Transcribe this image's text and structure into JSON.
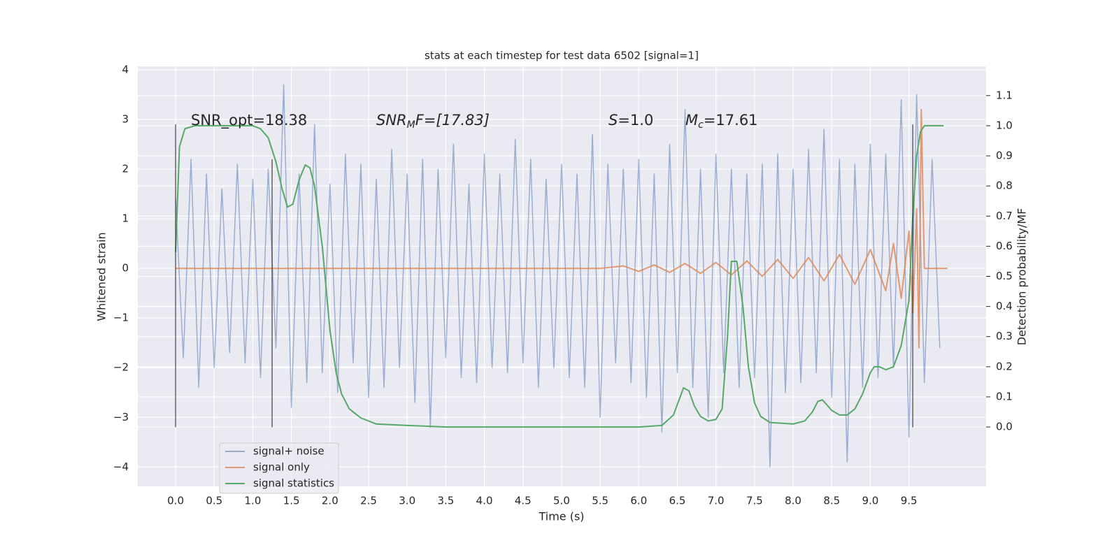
{
  "chart_data": {
    "type": "line",
    "title": "stats at each timestep for test data 6502 [signal=1]",
    "xlabel": "Time (s)",
    "ylabel": "Whitened strain",
    "y2label": "Detection probability/MF",
    "xlim": [
      -0.49,
      10.5
    ],
    "ylim": [
      -4.39,
      4.07
    ],
    "y2lim": [
      -0.197,
      1.197
    ],
    "xticks": [
      {
        "value": 0,
        "label": "0.0"
      },
      {
        "value": 0.5,
        "label": "0.5"
      },
      {
        "value": 1,
        "label": "1.0"
      },
      {
        "value": 1.5,
        "label": "1.5"
      },
      {
        "value": 2,
        "label": "2.0"
      },
      {
        "value": 2.5,
        "label": "2.5"
      },
      {
        "value": 3,
        "label": "3.0"
      },
      {
        "value": 3.5,
        "label": "3.5"
      },
      {
        "value": 4,
        "label": "4.0"
      },
      {
        "value": 4.5,
        "label": "4.5"
      },
      {
        "value": 5,
        "label": "5.0"
      },
      {
        "value": 5.5,
        "label": "5.5"
      },
      {
        "value": 6,
        "label": "6.0"
      },
      {
        "value": 6.5,
        "label": "6.5"
      },
      {
        "value": 7,
        "label": "7.0"
      },
      {
        "value": 7.5,
        "label": "7.5"
      },
      {
        "value": 8,
        "label": "8.0"
      },
      {
        "value": 8.5,
        "label": "8.5"
      },
      {
        "value": 9,
        "label": "9.0"
      },
      {
        "value": 9.5,
        "label": "9.5"
      }
    ],
    "yticks": [
      {
        "value": -4,
        "label": "−4"
      },
      {
        "value": -3,
        "label": "−3"
      },
      {
        "value": -2,
        "label": "−2"
      },
      {
        "value": -1,
        "label": "−1"
      },
      0,
      1,
      2,
      3,
      4
    ],
    "y2ticks": [
      {
        "value": 0,
        "label": "0.0"
      },
      {
        "value": 0.1,
        "label": "0.1"
      },
      {
        "value": 0.2,
        "label": "0.2"
      },
      {
        "value": 0.3,
        "label": "0.3"
      },
      {
        "value": 0.4,
        "label": "0.4"
      },
      {
        "value": 0.5,
        "label": "0.5"
      },
      {
        "value": 0.6,
        "label": "0.6"
      },
      {
        "value": 0.7,
        "label": "0.7"
      },
      {
        "value": 0.8,
        "label": "0.8"
      },
      {
        "value": 0.9,
        "label": "0.9"
      },
      {
        "value": 1,
        "label": "1.0"
      },
      {
        "value": 1.1,
        "label": "1.1"
      }
    ],
    "grid": true,
    "legend": "lower left",
    "annotations": [
      {
        "base": "SNR_opt=18.38"
      },
      {
        "base": "SNR",
        "sub": "M",
        "rest": "F=[17.83]"
      },
      {
        "base": "S",
        "rest": "=1.0"
      },
      {
        "base": "M",
        "sub": "c",
        "rest": "=17.61"
      }
    ],
    "vlines": [
      {
        "x": 0,
        "ymin": -3.2,
        "ymax": 2.9
      },
      {
        "x": 1.25,
        "ymin": -3.2,
        "ymax": 2.2
      },
      {
        "x": 9.55,
        "ymin": -3.2,
        "ymax": 2.9
      }
    ],
    "series": [
      {
        "name": "signal+ noise",
        "color": "#4c72b0",
        "alpha": 0.5,
        "x": [
          0,
          0.1,
          0.2,
          0.3,
          0.4,
          0.5,
          0.6,
          0.7,
          0.8,
          0.9,
          1.0,
          1.1,
          1.2,
          1.3,
          1.4,
          1.5,
          1.6,
          1.7,
          1.8,
          1.9,
          2.0,
          2.1,
          2.2,
          2.3,
          2.4,
          2.5,
          2.6,
          2.7,
          2.8,
          2.9,
          3.0,
          3.1,
          3.2,
          3.3,
          3.4,
          3.5,
          3.6,
          3.7,
          3.8,
          3.9,
          4.0,
          4.1,
          4.2,
          4.3,
          4.4,
          4.5,
          4.6,
          4.7,
          4.8,
          4.9,
          5.0,
          5.1,
          5.2,
          5.3,
          5.4,
          5.5,
          5.6,
          5.7,
          5.8,
          5.9,
          6.0,
          6.1,
          6.2,
          6.3,
          6.4,
          6.5,
          6.6,
          6.7,
          6.8,
          6.9,
          7.0,
          7.1,
          7.2,
          7.3,
          7.4,
          7.5,
          7.6,
          7.7,
          7.8,
          7.9,
          8.0,
          8.1,
          8.2,
          8.3,
          8.4,
          8.5,
          8.6,
          8.7,
          8.8,
          8.9,
          9.0,
          9.1,
          9.2,
          9.3,
          9.4,
          9.5,
          9.6,
          9.7,
          9.8,
          9.9
        ],
        "values": [
          1.4,
          -1.8,
          2.2,
          -2.4,
          1.9,
          -2.0,
          1.6,
          -1.7,
          2.1,
          -1.9,
          1.8,
          -2.2,
          2.0,
          -1.6,
          3.7,
          -2.8,
          1.9,
          -2.3,
          2.9,
          -2.1,
          1.7,
          -2.5,
          2.3,
          -1.9,
          2.1,
          -2.6,
          1.8,
          -2.4,
          2.4,
          -2.0,
          1.9,
          -2.7,
          2.2,
          -3.2,
          2.0,
          -1.8,
          2.5,
          -2.2,
          1.7,
          -2.3,
          2.3,
          -2.0,
          1.9,
          -2.1,
          2.6,
          -1.9,
          2.2,
          -2.4,
          1.8,
          -2.0,
          2.1,
          -2.2,
          1.9,
          -2.4,
          2.7,
          -3.0,
          2.1,
          -1.9,
          2.0,
          -2.3,
          2.2,
          -2.6,
          1.9,
          -3.3,
          2.5,
          -2.1,
          3.2,
          -2.4,
          2.0,
          -3.0,
          2.3,
          -2.1,
          2.0,
          -2.4,
          1.9,
          -2.2,
          2.1,
          -4.0,
          2.3,
          -2.5,
          2.0,
          -2.3,
          2.4,
          -2.1,
          2.8,
          -2.6,
          2.2,
          -3.9,
          2.1,
          -2.4,
          2.5,
          -2.2,
          2.3,
          -2.0,
          3.4,
          -3.4,
          3.5,
          -2.3,
          2.2,
          -1.6
        ]
      },
      {
        "name": "signal only",
        "color": "#dd8452",
        "alpha": 0.8,
        "x": [
          0,
          5.5,
          5.8,
          6.0,
          6.2,
          6.4,
          6.6,
          6.8,
          7.0,
          7.2,
          7.4,
          7.6,
          7.8,
          8.0,
          8.2,
          8.4,
          8.6,
          8.8,
          9.0,
          9.2,
          9.3,
          9.4,
          9.5,
          9.55,
          9.6,
          9.63,
          9.66,
          9.7,
          10.0
        ],
        "values": [
          0,
          0,
          0.05,
          -0.06,
          0.07,
          -0.08,
          0.1,
          -0.1,
          0.12,
          -0.13,
          0.15,
          -0.16,
          0.18,
          -0.2,
          0.22,
          -0.25,
          0.28,
          -0.32,
          0.38,
          -0.45,
          0.5,
          -0.6,
          0.75,
          -0.9,
          1.2,
          -1.6,
          3.2,
          0,
          0
        ]
      },
      {
        "name": "signal statistics",
        "color": "#55a868",
        "alpha": 1,
        "axis": "y2",
        "x": [
          0,
          0.05,
          0.12,
          0.25,
          0.5,
          0.8,
          1.0,
          1.1,
          1.2,
          1.3,
          1.38,
          1.45,
          1.52,
          1.6,
          1.68,
          1.74,
          1.8,
          1.9,
          2.0,
          2.08,
          2.15,
          2.25,
          2.4,
          2.6,
          3.0,
          3.5,
          4.0,
          4.5,
          5.0,
          5.5,
          6.0,
          6.3,
          6.45,
          6.58,
          6.65,
          6.72,
          6.8,
          6.9,
          7.0,
          7.08,
          7.15,
          7.2,
          7.27,
          7.35,
          7.42,
          7.5,
          7.58,
          7.7,
          8.0,
          8.15,
          8.25,
          8.32,
          8.38,
          8.5,
          8.6,
          8.7,
          8.8,
          8.9,
          9.0,
          9.05,
          9.12,
          9.2,
          9.3,
          9.4,
          9.5,
          9.55,
          9.6,
          9.65,
          9.7,
          9.95
        ],
        "values": [
          0.58,
          0.93,
          0.99,
          1.0,
          1.0,
          1.0,
          1.0,
          0.99,
          0.96,
          0.88,
          0.79,
          0.73,
          0.74,
          0.82,
          0.87,
          0.86,
          0.8,
          0.6,
          0.32,
          0.18,
          0.11,
          0.06,
          0.03,
          0.01,
          0.005,
          0,
          0,
          0,
          0,
          0,
          0,
          0.005,
          0.04,
          0.13,
          0.12,
          0.07,
          0.035,
          0.02,
          0.025,
          0.06,
          0.3,
          0.55,
          0.55,
          0.4,
          0.2,
          0.08,
          0.035,
          0.015,
          0.01,
          0.02,
          0.05,
          0.085,
          0.09,
          0.055,
          0.04,
          0.04,
          0.06,
          0.11,
          0.18,
          0.2,
          0.2,
          0.19,
          0.2,
          0.27,
          0.42,
          0.7,
          0.9,
          0.98,
          1.0,
          1.0
        ]
      }
    ]
  }
}
